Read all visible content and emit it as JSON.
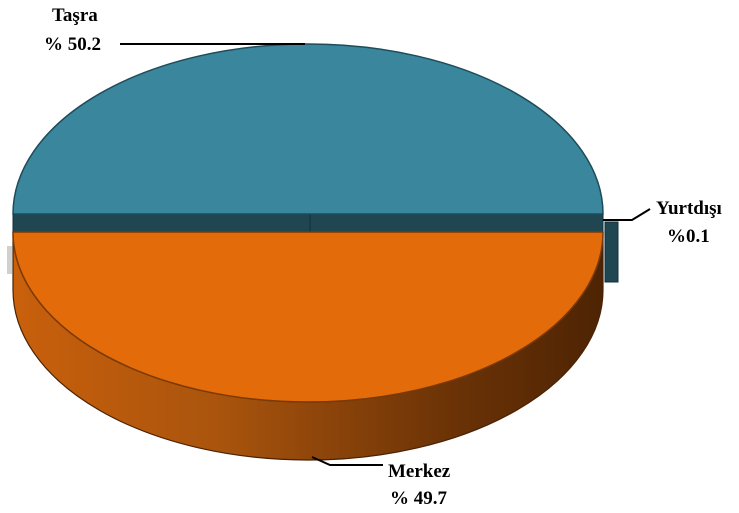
{
  "chart_data": {
    "type": "pie",
    "style": "3d-exploded",
    "slices": [
      {
        "name": "Taşra",
        "value": 50.2,
        "label": "% 50.2",
        "color": "#3a869d"
      },
      {
        "name": "Merkez",
        "value": 49.7,
        "label": "% 49.7",
        "color": "#e36b0a"
      },
      {
        "name": "Yurtdışı",
        "value": 0.1,
        "label": "%0.1",
        "color": "#1f4651"
      }
    ]
  }
}
